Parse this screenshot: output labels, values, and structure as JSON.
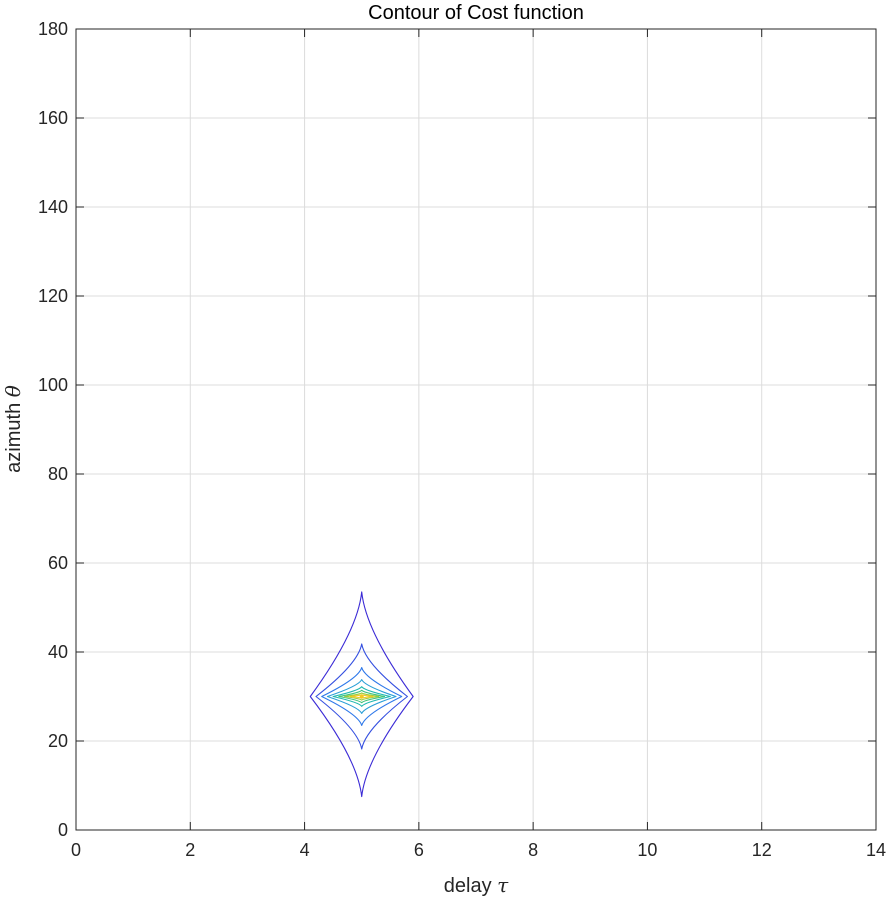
{
  "chart_data": {
    "type": "contour",
    "title": "Contour of Cost function",
    "xlabel": "delay",
    "xlabel_symbol": "τ",
    "ylabel": "azimuth",
    "ylabel_symbol": "θ",
    "xlim": [
      0,
      14
    ],
    "ylim": [
      0,
      180
    ],
    "x_ticks": [
      0,
      2,
      4,
      6,
      8,
      10,
      12,
      14
    ],
    "y_ticks": [
      0,
      20,
      40,
      60,
      80,
      100,
      120,
      140,
      160,
      180
    ],
    "grid": true,
    "peak": {
      "x": 5,
      "y": 30
    },
    "contours": [
      {
        "level": 1,
        "color": "#3b2bd6",
        "x_range": [
          4.1,
          5.9
        ],
        "y_range": [
          7.5,
          53.5
        ]
      },
      {
        "level": 2,
        "color": "#3550e0",
        "x_range": [
          4.2,
          5.8
        ],
        "y_range": [
          18.2,
          41.8
        ]
      },
      {
        "level": 3,
        "color": "#2f79ea",
        "x_range": [
          4.3,
          5.7
        ],
        "y_range": [
          23.5,
          36.5
        ]
      },
      {
        "level": 4,
        "color": "#2a9fd6",
        "x_range": [
          4.4,
          5.6
        ],
        "y_range": [
          26.2,
          33.8
        ]
      },
      {
        "level": 5,
        "color": "#1fb8b0",
        "x_range": [
          4.5,
          5.5
        ],
        "y_range": [
          27.8,
          32.2
        ]
      },
      {
        "level": 6,
        "color": "#3fc47a",
        "x_range": [
          4.6,
          5.4
        ],
        "y_range": [
          28.6,
          31.4
        ]
      },
      {
        "level": 7,
        "color": "#9ccb3a",
        "x_range": [
          4.7,
          5.3
        ],
        "y_range": [
          29.2,
          30.8
        ]
      },
      {
        "level": 8,
        "color": "#f2c924",
        "x_range": [
          4.8,
          5.2
        ],
        "y_range": [
          29.6,
          30.4
        ]
      }
    ]
  }
}
